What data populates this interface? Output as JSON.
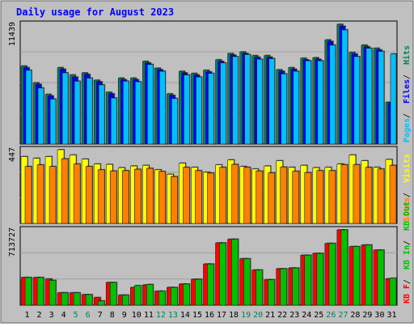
{
  "title": "Daily usage for August 2023",
  "colors": {
    "background": "#C0C0C0",
    "border_dark": "#606060",
    "title": "#0000FF",
    "hits": "#00805C",
    "files": "#0000FF",
    "pages": "#00C0FF",
    "visits": "#FFFF00",
    "sites": "#FF8000",
    "kbin": "#00C000",
    "kbout": "#FF0000",
    "grid": "#A0A0A0",
    "weekend_label": "#00805C",
    "weekday_label": "#000000"
  },
  "chart_data": [
    {
      "type": "bar",
      "panel": "hits",
      "max_label": "11439",
      "legend": [
        {
          "label": "Pages",
          "color_key": "pages"
        },
        {
          "label": "Files",
          "color_key": "files"
        },
        {
          "label": "Hits",
          "color_key": "hits"
        }
      ],
      "categories": [
        "1",
        "2",
        "3",
        "4",
        "5",
        "6",
        "7",
        "8",
        "9",
        "10",
        "11",
        "12",
        "13",
        "14",
        "15",
        "16",
        "17",
        "18",
        "19",
        "20",
        "21",
        "22",
        "23",
        "24",
        "25",
        "26",
        "27",
        "28",
        "29",
        "30",
        "31"
      ],
      "weekend_days": [
        "5",
        "6",
        "12",
        "13",
        "19",
        "20",
        "26",
        "27"
      ],
      "ylim": [
        0,
        11439
      ],
      "series": [
        {
          "name": "Hits",
          "color_key": "hits",
          "values": [
            7450,
            5850,
            4750,
            7300,
            6600,
            6800,
            6100,
            4950,
            6300,
            6300,
            7900,
            7250,
            4800,
            6950,
            6750,
            7050,
            8050,
            8650,
            8800,
            8450,
            8450,
            7100,
            7300,
            8200,
            8250,
            9950,
            11439,
            8750,
            9450,
            9150,
            4000
          ]
        },
        {
          "name": "Files",
          "color_key": "files",
          "values": [
            7300,
            5700,
            4600,
            7150,
            6400,
            6650,
            5950,
            4800,
            6150,
            6150,
            7750,
            7100,
            4650,
            6800,
            6600,
            6900,
            7900,
            8500,
            8650,
            8300,
            8300,
            6950,
            7150,
            8050,
            8100,
            9800,
            11250,
            8600,
            9300,
            9000,
            3900
          ]
        },
        {
          "name": "Pages",
          "color_key": "pages",
          "values": [
            7050,
            5350,
            4300,
            6800,
            6000,
            6300,
            5650,
            4400,
            6000,
            5950,
            7600,
            6950,
            4350,
            6600,
            6400,
            6750,
            7750,
            8350,
            8550,
            8100,
            8150,
            6700,
            6950,
            7950,
            7950,
            9450,
            10900,
            8350,
            9150,
            8850,
            8600
          ]
        }
      ]
    },
    {
      "type": "bar",
      "panel": "visits",
      "max_label": "447",
      "legend": [
        {
          "label": "Sites",
          "color_key": "sites"
        },
        {
          "label": "Visits",
          "color_key": "visits"
        }
      ],
      "categories": [
        "1",
        "2",
        "3",
        "4",
        "5",
        "6",
        "7",
        "8",
        "9",
        "10",
        "11",
        "12",
        "13",
        "14",
        "15",
        "16",
        "17",
        "18",
        "19",
        "20",
        "21",
        "22",
        "23",
        "24",
        "25",
        "26",
        "27",
        "28",
        "29",
        "30",
        "31"
      ],
      "ylim": [
        0,
        447
      ],
      "series": [
        {
          "name": "Visits",
          "color_key": "visits",
          "values": [
            405,
            395,
            405,
            447,
            415,
            390,
            360,
            358,
            338,
            348,
            352,
            325,
            298,
            365,
            340,
            310,
            355,
            385,
            345,
            330,
            348,
            380,
            340,
            352,
            338,
            340,
            360,
            415,
            380,
            340,
            388
          ]
        },
        {
          "name": "Sites",
          "color_key": "sites",
          "values": [
            345,
            355,
            345,
            392,
            360,
            345,
            325,
            318,
            320,
            328,
            334,
            315,
            284,
            340,
            320,
            305,
            340,
            358,
            340,
            318,
            306,
            342,
            316,
            308,
            320,
            320,
            356,
            356,
            340,
            330,
            352
          ]
        }
      ]
    },
    {
      "type": "bar",
      "panel": "volume",
      "max_label": "713727",
      "legend": [
        {
          "label": "KB F",
          "color_key": "kbout"
        },
        {
          "label": "KB In",
          "color_key": "kbin"
        },
        {
          "label": "KB Out",
          "color_key": "kbin"
        }
      ],
      "categories": [
        "1",
        "2",
        "3",
        "4",
        "5",
        "6",
        "7",
        "8",
        "9",
        "10",
        "11",
        "12",
        "13",
        "14",
        "15",
        "16",
        "17",
        "18",
        "19",
        "20",
        "21",
        "22",
        "23",
        "24",
        "25",
        "26",
        "27",
        "28",
        "29",
        "30",
        "31"
      ],
      "ylim": [
        0,
        713727
      ],
      "series": [
        {
          "name": "KB Out",
          "color_key": "kbout",
          "values": [
            262000,
            262000,
            248000,
            117000,
            117000,
            100000,
            72000,
            215000,
            95000,
            168000,
            192000,
            132000,
            168000,
            200000,
            245000,
            390000,
            590000,
            625000,
            440000,
            333000,
            240000,
            345000,
            352000,
            473000,
            490000,
            585000,
            713727,
            555000,
            570000,
            522000,
            250000
          ]
        },
        {
          "name": "KB In",
          "color_key": "kbin",
          "values": [
            262000,
            262000,
            235000,
            117000,
            117000,
            100000,
            40000,
            215000,
            95000,
            185000,
            196000,
            132000,
            168000,
            200000,
            245000,
            390000,
            590000,
            625000,
            440000,
            333000,
            240000,
            345000,
            352000,
            473000,
            490000,
            585000,
            713727,
            555000,
            570000,
            522000,
            255000
          ]
        }
      ]
    }
  ]
}
